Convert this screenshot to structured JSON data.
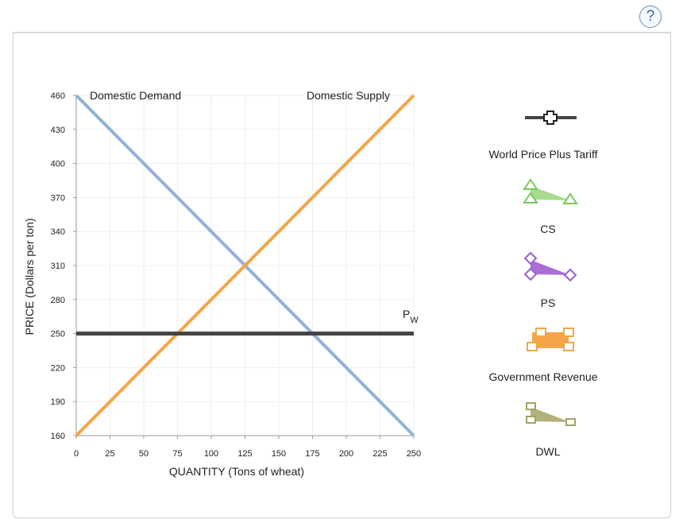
{
  "help_button": {
    "label": "?",
    "icon": "question-icon"
  },
  "chart_data": {
    "type": "line",
    "xlabel": "QUANTITY (Tons of wheat)",
    "ylabel": "PRICE (Dollars per ton)",
    "xlim": [
      0,
      250
    ],
    "ylim": [
      160,
      460
    ],
    "x_ticks": [
      0,
      25,
      50,
      75,
      100,
      125,
      150,
      175,
      200,
      225,
      250
    ],
    "y_ticks": [
      160,
      190,
      220,
      250,
      280,
      310,
      340,
      370,
      400,
      430,
      460
    ],
    "grid": true,
    "series": [
      {
        "name": "Domestic Demand",
        "color": "#92b2d6",
        "x": [
          0,
          250
        ],
        "y": [
          460,
          160
        ]
      },
      {
        "name": "Domestic Supply",
        "color": "#f4a54a",
        "x": [
          0,
          250
        ],
        "y": [
          160,
          460
        ]
      },
      {
        "name": "PW",
        "name_main": "P",
        "name_sub": "W",
        "color": "#444444",
        "x": [
          0,
          250
        ],
        "y": [
          250,
          250
        ]
      }
    ]
  },
  "legend": {
    "items": [
      {
        "label": "World Price Plus Tariff",
        "icon": "plus-line-icon",
        "color": "#444444"
      },
      {
        "label": "CS",
        "icon": "triangle-icon",
        "color": "#a8dc8c",
        "stroke": "#79c95a"
      },
      {
        "label": "PS",
        "icon": "diamond-icon",
        "color": "#a86ed4",
        "stroke": "#9a5fd0"
      },
      {
        "label": "Government Revenue",
        "icon": "square-icon",
        "color": "#f4a54a",
        "stroke": "#f4a54a"
      },
      {
        "label": "DWL",
        "icon": "dwl-square-icon",
        "color": "#b3b27c",
        "stroke": "#a3a266"
      }
    ]
  }
}
